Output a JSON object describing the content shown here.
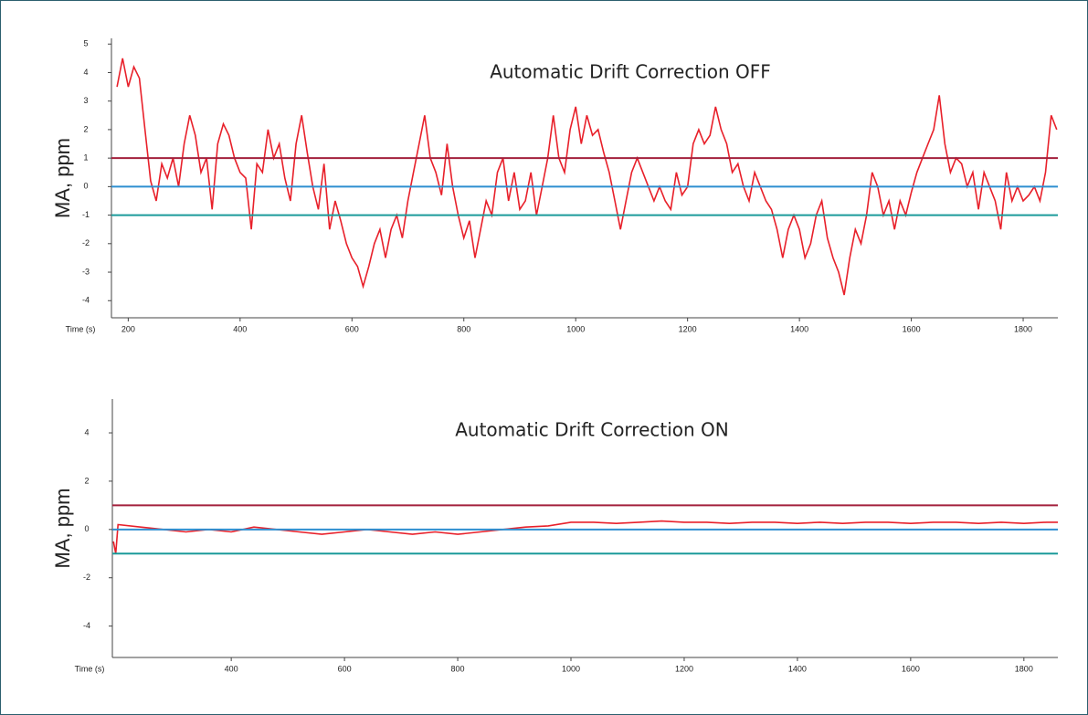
{
  "chart_data": [
    {
      "type": "line",
      "title": "Automatic Drift Correction OFF",
      "y_label": "MA, ppm",
      "x_label": "Time (s)",
      "xlim": [
        170,
        1862
      ],
      "xticks": [
        200,
        400,
        600,
        800,
        1000,
        1200,
        1400,
        1600,
        1800
      ],
      "ylim": [
        -4.6,
        5.2
      ],
      "yticks": [
        5,
        4,
        3,
        2,
        1,
        0,
        -1,
        -2,
        -3,
        -4
      ],
      "reference_lines": [
        {
          "value": 1,
          "color": "#a3203c"
        },
        {
          "value": 0,
          "color": "#2e8fd0"
        },
        {
          "value": -1,
          "color": "#1a9a9a"
        }
      ],
      "series": [
        {
          "color": "#e8202a",
          "x": [
            180,
            190,
            200,
            210,
            220,
            230,
            240,
            250,
            260,
            270,
            280,
            290,
            300,
            310,
            320,
            330,
            340,
            350,
            360,
            370,
            380,
            390,
            400,
            410,
            420,
            430,
            440,
            450,
            460,
            470,
            480,
            490,
            500,
            510,
            520,
            530,
            540,
            550,
            560,
            570,
            580,
            590,
            600,
            610,
            620,
            630,
            640,
            650,
            660,
            670,
            680,
            690,
            700,
            710,
            720,
            730,
            740,
            750,
            760,
            770,
            780,
            790,
            800,
            810,
            820,
            830,
            840,
            850,
            860,
            870,
            880,
            890,
            900,
            910,
            920,
            930,
            940,
            950,
            960,
            970,
            980,
            990,
            1000,
            1010,
            1020,
            1030,
            1040,
            1050,
            1060,
            1070,
            1080,
            1090,
            1100,
            1110,
            1120,
            1130,
            1140,
            1150,
            1160,
            1170,
            1180,
            1190,
            1200,
            1210,
            1220,
            1230,
            1240,
            1250,
            1260,
            1270,
            1280,
            1290,
            1300,
            1310,
            1320,
            1330,
            1340,
            1350,
            1360,
            1370,
            1380,
            1390,
            1400,
            1410,
            1420,
            1430,
            1440,
            1450,
            1460,
            1470,
            1480,
            1490,
            1500,
            1510,
            1520,
            1530,
            1540,
            1550,
            1560,
            1570,
            1580,
            1590,
            1600,
            1610,
            1620,
            1630,
            1640,
            1650,
            1660,
            1670,
            1680,
            1690,
            1700,
            1710,
            1720,
            1730,
            1740,
            1750,
            1760,
            1770,
            1780,
            1790,
            1800,
            1810,
            1820,
            1830,
            1840,
            1850,
            1860
          ],
          "values": [
            3.5,
            4.5,
            3.5,
            4.2,
            3.8,
            2.0,
            0.2,
            -0.5,
            0.8,
            0.3,
            1.0,
            0.0,
            1.5,
            2.5,
            1.8,
            0.5,
            1.0,
            -0.8,
            1.5,
            2.2,
            1.8,
            1.0,
            0.5,
            0.3,
            -1.5,
            0.8,
            0.5,
            2.0,
            1.0,
            1.5,
            0.3,
            -0.5,
            1.5,
            2.5,
            1.2,
            0.0,
            -0.8,
            0.8,
            -1.5,
            -0.5,
            -1.2,
            -2.0,
            -2.5,
            -2.8,
            -3.5,
            -2.8,
            -2.0,
            -1.5,
            -2.5,
            -1.5,
            -1.0,
            -1.8,
            -0.5,
            0.5,
            1.5,
            2.5,
            1.0,
            0.5,
            -0.3,
            1.5,
            0.0,
            -1.0,
            -1.8,
            -1.2,
            -2.5,
            -1.5,
            -0.5,
            -1.0,
            0.5,
            1.0,
            -0.5,
            0.5,
            -0.8,
            -0.5,
            0.5,
            -1.0,
            0.0,
            1.0,
            2.5,
            1.0,
            0.5,
            2.0,
            2.8,
            1.5,
            2.5,
            1.8,
            2.0,
            1.2,
            0.5,
            -0.5,
            -1.5,
            -0.5,
            0.5,
            1.0,
            0.5,
            0.0,
            -0.5,
            0.0,
            -0.5,
            -0.8,
            0.5,
            -0.3,
            0.0,
            1.5,
            2.0,
            1.5,
            1.8,
            2.8,
            2.0,
            1.5,
            0.5,
            0.8,
            0.0,
            -0.5,
            0.5,
            0.0,
            -0.5,
            -0.8,
            -1.5,
            -2.5,
            -1.5,
            -1.0,
            -1.5,
            -2.5,
            -2.0,
            -1.0,
            -0.5,
            -1.8,
            -2.5,
            -3.0,
            -3.8,
            -2.5,
            -1.5,
            -2.0,
            -1.0,
            0.5,
            0.0,
            -1.0,
            -0.5,
            -1.5,
            -0.5,
            -1.0,
            -0.2,
            0.5,
            1.0,
            1.5,
            2.0,
            3.2,
            1.5,
            0.5,
            1.0,
            0.8,
            0.0,
            0.5,
            -0.8,
            0.5,
            0.0,
            -0.5,
            -1.5,
            0.5,
            -0.5,
            0.0,
            -0.5,
            -0.3,
            0.0,
            -0.5,
            0.5,
            2.5,
            2.0
          ]
        }
      ]
    },
    {
      "type": "line",
      "title": "Automatic Drift Correction ON",
      "y_label": "MA, ppm",
      "x_label": "Time (s)",
      "xlim": [
        190,
        1860
      ],
      "xticks": [
        400,
        600,
        800,
        1000,
        1200,
        1400,
        1600,
        1800
      ],
      "ylim": [
        -5.3,
        5.4
      ],
      "yticks": [
        4,
        2,
        0,
        -2,
        -4
      ],
      "reference_lines": [
        {
          "value": 1,
          "color": "#a3203c"
        },
        {
          "value": 0,
          "color": "#2e8fd0"
        },
        {
          "value": -1,
          "color": "#1a9a9a"
        }
      ],
      "series": [
        {
          "color": "#e8202a",
          "x": [
            192,
            196,
            200,
            240,
            280,
            320,
            360,
            400,
            440,
            480,
            520,
            560,
            600,
            640,
            680,
            720,
            760,
            800,
            840,
            880,
            920,
            960,
            1000,
            1040,
            1080,
            1120,
            1160,
            1200,
            1240,
            1280,
            1320,
            1360,
            1400,
            1440,
            1480,
            1520,
            1560,
            1600,
            1640,
            1680,
            1720,
            1760,
            1800,
            1840,
            1860
          ],
          "values": [
            -0.5,
            -1.0,
            0.2,
            0.1,
            0.0,
            -0.1,
            0.0,
            -0.1,
            0.1,
            0.0,
            -0.1,
            -0.2,
            -0.1,
            0.0,
            -0.1,
            -0.2,
            -0.1,
            -0.2,
            -0.1,
            0.0,
            0.1,
            0.15,
            0.3,
            0.3,
            0.25,
            0.3,
            0.35,
            0.3,
            0.3,
            0.25,
            0.3,
            0.3,
            0.25,
            0.3,
            0.25,
            0.3,
            0.3,
            0.25,
            0.3,
            0.3,
            0.25,
            0.3,
            0.25,
            0.3,
            0.3
          ]
        }
      ]
    }
  ]
}
